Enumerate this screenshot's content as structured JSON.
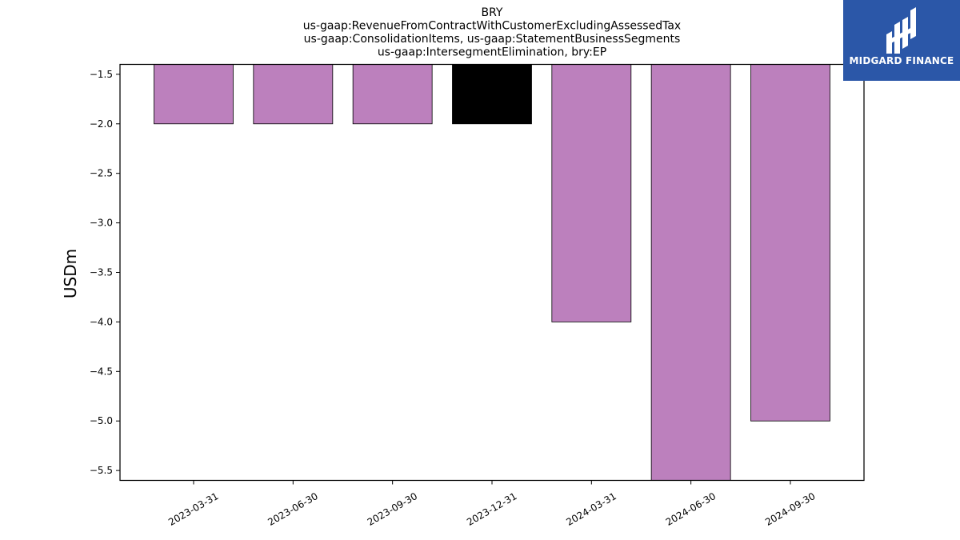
{
  "chart_data": {
    "type": "bar",
    "title_lines": [
      "BRY",
      "us-gaap:RevenueFromContractWithCustomerExcludingAssessedTax",
      "us-gaap:ConsolidationItems, us-gaap:StatementBusinessSegments",
      "us-gaap:IntersegmentElimination, bry:EP"
    ],
    "ylabel": "USDm",
    "xlabel": "",
    "categories": [
      "2023-03-31",
      "2023-06-30",
      "2023-09-30",
      "2023-12-31",
      "2024-03-31",
      "2024-06-30",
      "2024-09-30"
    ],
    "values": [
      -2.0,
      -2.0,
      -2.0,
      -2.0,
      -4.0,
      -5.6,
      -5.0
    ],
    "bar_colors": [
      "#bc80bd",
      "#bc80bd",
      "#bc80bd",
      "#000000",
      "#bc80bd",
      "#bc80bd",
      "#bc80bd"
    ],
    "ylim": [
      -5.6,
      -1.4
    ],
    "yticks": [
      -1.5,
      -2.0,
      -2.5,
      -3.0,
      -3.5,
      -4.0,
      -4.5,
      -5.0,
      -5.5
    ],
    "ytick_labels": [
      "−1.5",
      "−2.0",
      "−2.5",
      "−3.0",
      "−3.5",
      "−4.0",
      "−4.5",
      "−5.0",
      "−5.5"
    ],
    "grid": false,
    "legend": "none"
  },
  "logo": {
    "text": "MIDGARD FINANCE",
    "background": "#2b57a8",
    "icon": "midgard-logo-icon"
  }
}
